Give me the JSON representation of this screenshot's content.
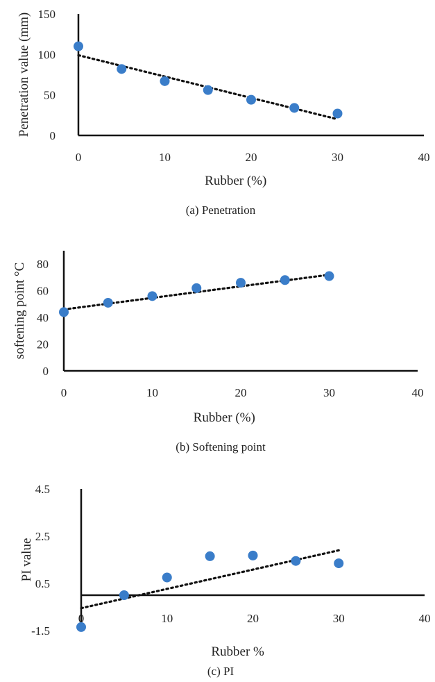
{
  "figure": {
    "captions": [
      "(a) Penetration",
      "(b) Softening point",
      "(c) PI"
    ]
  },
  "style": {
    "marker_color": "#3a7dc9",
    "trend_color": "#111111",
    "axis_color": "#111111"
  },
  "chart_data": [
    {
      "type": "scatter",
      "caption": "(a) Penetration",
      "xlabel": "Rubber (%)",
      "ylabel": "Penetration value (mm)",
      "xlim": [
        0,
        40
      ],
      "ylim": [
        0,
        150
      ],
      "xticks": [
        0,
        10,
        20,
        30,
        40
      ],
      "yticks": [
        0,
        50,
        100,
        150
      ],
      "x": [
        0,
        5,
        10,
        15,
        20,
        25,
        30
      ],
      "y": [
        110,
        82,
        67,
        56,
        44,
        34,
        27
      ],
      "trendline": {
        "type": "linear",
        "x": [
          0,
          30
        ],
        "y": [
          99,
          20
        ]
      },
      "grid": false,
      "legend": "none"
    },
    {
      "type": "scatter",
      "caption": "(b) Softening point",
      "xlabel": "Rubber (%)",
      "ylabel": "softening point °C",
      "xlim": [
        0,
        40
      ],
      "ylim": [
        0,
        90
      ],
      "xticks": [
        0,
        10,
        20,
        30,
        40
      ],
      "yticks": [
        0,
        20,
        40,
        60,
        80
      ],
      "x": [
        0,
        5,
        10,
        15,
        20,
        25,
        30
      ],
      "y": [
        44,
        51,
        56,
        62,
        66,
        68,
        71
      ],
      "trendline": {
        "type": "linear",
        "x": [
          0,
          30
        ],
        "y": [
          46,
          72
        ]
      },
      "grid": false,
      "legend": "none"
    },
    {
      "type": "scatter",
      "caption": "(c) PI",
      "xlabel": "Rubber %",
      "ylabel": "PI value",
      "xlim": [
        0,
        40
      ],
      "ylim": [
        -1.5,
        4.5
      ],
      "xticks": [
        0,
        10,
        20,
        30,
        40
      ],
      "yticks": [
        -1.5,
        0.5,
        2.5,
        4.5
      ],
      "x_axis_crosses_y_at": 0,
      "x": [
        0,
        5,
        10,
        15,
        20,
        25,
        30
      ],
      "y": [
        -1.35,
        0.0,
        0.75,
        1.65,
        1.68,
        1.45,
        1.35
      ],
      "trendline": {
        "type": "linear",
        "x": [
          0,
          30
        ],
        "y": [
          -0.55,
          1.9
        ]
      },
      "grid": false,
      "legend": "none"
    }
  ]
}
